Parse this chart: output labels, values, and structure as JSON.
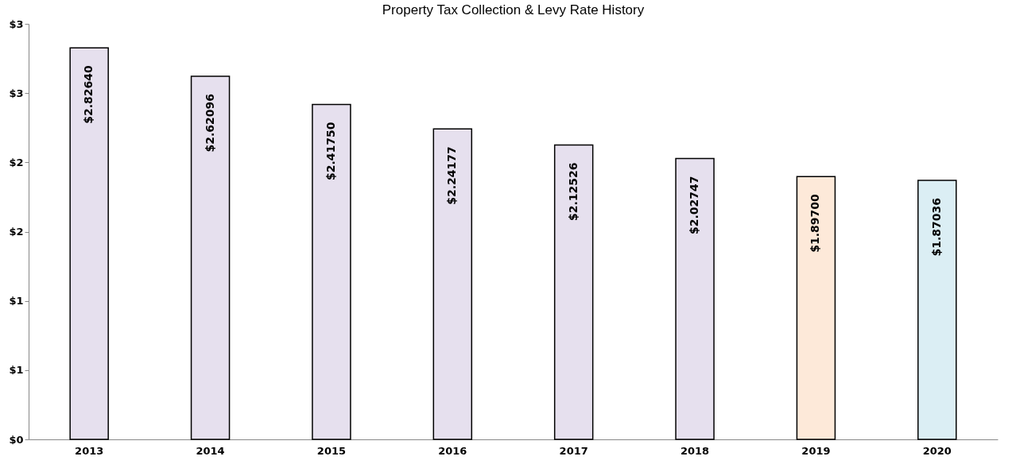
{
  "chart_data": {
    "type": "bar",
    "title": "Property Tax Collection & Levy Rate History",
    "categories": [
      "2013",
      "2014",
      "2015",
      "2016",
      "2017",
      "2018",
      "2019",
      "2020"
    ],
    "values": [
      2.8264,
      2.62096,
      2.4175,
      2.24177,
      2.12526,
      2.02747,
      1.897,
      1.87036
    ],
    "colors": [
      "#e6e0ee",
      "#e6e0ee",
      "#e6e0ee",
      "#e6e0ee",
      "#e6e0ee",
      "#e6e0ee",
      "#fde9d9",
      "#dbeef4"
    ],
    "value_labels": [
      "$2.82640",
      "$2.62096",
      "$2.41750",
      "$2.24177",
      "$2.12526",
      "$2.02747",
      "$1.89700",
      "$1.87036"
    ],
    "ylim": [
      0,
      3
    ],
    "yticks": [
      {
        "value": 0,
        "label": "$0"
      },
      {
        "value": 0.5,
        "label": "$1"
      },
      {
        "value": 1,
        "label": "$1"
      },
      {
        "value": 1.5,
        "label": "$2"
      },
      {
        "value": 2,
        "label": "$2"
      },
      {
        "value": 2.5,
        "label": "$3"
      },
      {
        "value": 3,
        "label": "$3"
      }
    ],
    "grid": false
  }
}
